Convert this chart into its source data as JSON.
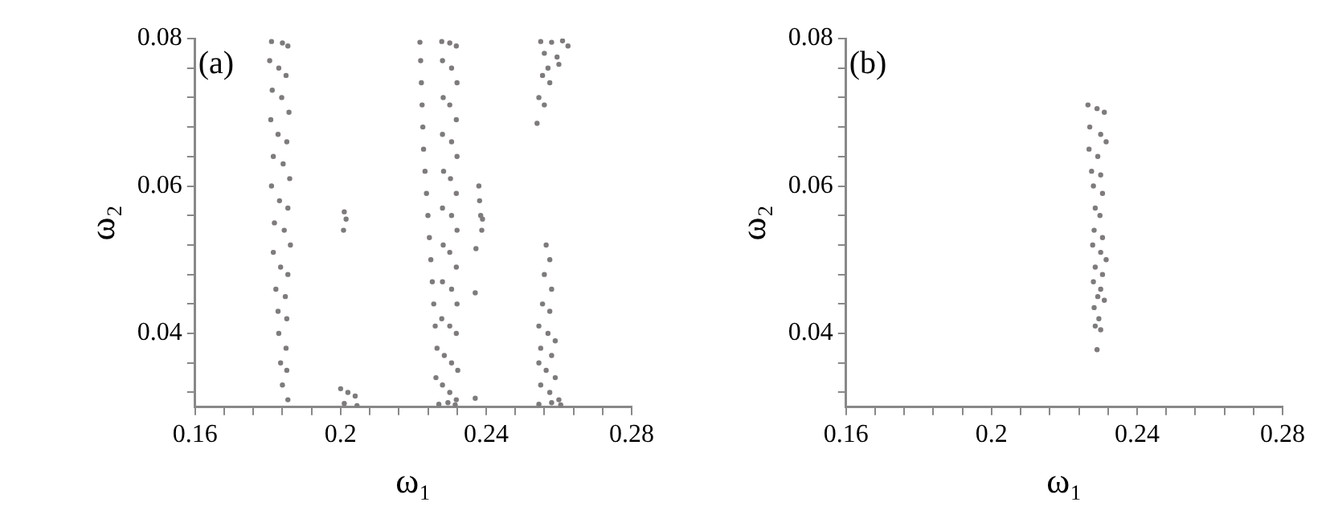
{
  "chart_data": [
    {
      "type": "scatter",
      "xlabel": "ω₁",
      "ylabel": "ω₂",
      "annotations": [
        "(a)"
      ],
      "marker": "circle",
      "grid": false,
      "xlim": [
        0.16,
        0.28
      ],
      "ylim": [
        0.03,
        0.08
      ],
      "xticks": [
        0.16,
        {
          "value": 0.168,
          "label": null
        },
        {
          "value": 0.176,
          "label": null
        },
        {
          "value": 0.184,
          "label": null
        },
        {
          "value": 0.192,
          "label": null
        },
        0.2,
        {
          "value": 0.208,
          "label": null
        },
        {
          "value": 0.216,
          "label": null
        },
        {
          "value": 0.224,
          "label": null
        },
        {
          "value": 0.232,
          "label": null
        },
        0.24,
        {
          "value": 0.248,
          "label": null
        },
        {
          "value": 0.256,
          "label": null
        },
        {
          "value": 0.264,
          "label": null
        },
        {
          "value": 0.272,
          "label": null
        },
        0.28
      ],
      "yticks": [
        {
          "value": 0.032,
          "label": null
        },
        {
          "value": 0.036,
          "label": null
        },
        0.04,
        {
          "value": 0.044,
          "label": null
        },
        {
          "value": 0.048,
          "label": null
        },
        {
          "value": 0.052,
          "label": null
        },
        {
          "value": 0.056,
          "label": null
        },
        0.06,
        {
          "value": 0.064,
          "label": null
        },
        {
          "value": 0.068,
          "label": null
        },
        {
          "value": 0.072,
          "label": null
        },
        {
          "value": 0.076,
          "label": null
        },
        0.08
      ],
      "series": [
        {
          "color": "#7f7b7b",
          "x": [
            0.181,
            0.184,
            0.1855,
            0.1805,
            0.183,
            0.185,
            0.1812,
            0.1838,
            0.1858,
            0.1808,
            0.1828,
            0.1852,
            0.1815,
            0.1842,
            0.186,
            0.181,
            0.1832,
            0.1855,
            0.1818,
            0.1845,
            0.1862,
            0.1815,
            0.1835,
            0.1855,
            0.1822,
            0.1848,
            0.1828,
            0.1852,
            0.183,
            0.185,
            0.1835,
            0.1852,
            0.184,
            0.1855,
            0.2278,
            0.23,
            0.2318,
            0.228,
            0.2305,
            0.232,
            0.2282,
            0.23,
            0.2318,
            0.228,
            0.2305,
            0.232,
            0.2283,
            0.2302,
            0.2318,
            0.228,
            0.2305,
            0.232,
            0.2282,
            0.23,
            0.2318,
            0.228,
            0.2305,
            0.232,
            0.2278,
            0.23,
            0.2318,
            0.2265,
            0.2285,
            0.2305,
            0.2322,
            0.2262,
            0.228,
            0.23,
            0.2318,
            0.227,
            0.2295,
            0.2315,
            0.2218,
            0.222,
            0.2222,
            0.2224,
            0.2226,
            0.2228,
            0.2232,
            0.2236,
            0.224,
            0.2244,
            0.2248,
            0.2252,
            0.2256,
            0.226,
            0.201,
            0.2015,
            0.2008,
            0.2,
            0.202,
            0.204,
            0.201,
            0.2045,
            0.238,
            0.2382,
            0.2385,
            0.239,
            0.2388,
            0.2372,
            0.237,
            0.237,
            0.255,
            0.258,
            0.261,
            0.2625,
            0.256,
            0.2595,
            0.257,
            0.26,
            0.2555,
            0.2575,
            0.2545,
            0.256,
            0.254,
            0.2565,
            0.2575,
            0.256,
            0.258,
            0.2555,
            0.2575,
            0.2545,
            0.257,
            0.259,
            0.255,
            0.258,
            0.2545,
            0.2565,
            0.259,
            0.255,
            0.2575,
            0.26,
            0.2545,
            0.258,
            0.2605
          ],
          "values": [
            0.0796,
            0.0794,
            0.079,
            0.077,
            0.076,
            0.075,
            0.073,
            0.072,
            0.07,
            0.069,
            0.067,
            0.066,
            0.064,
            0.063,
            0.061,
            0.06,
            0.058,
            0.057,
            0.055,
            0.054,
            0.052,
            0.051,
            0.049,
            0.048,
            0.046,
            0.045,
            0.043,
            0.042,
            0.04,
            0.038,
            0.036,
            0.035,
            0.033,
            0.031,
            0.0796,
            0.0794,
            0.079,
            0.077,
            0.076,
            0.074,
            0.072,
            0.071,
            0.069,
            0.067,
            0.066,
            0.064,
            0.062,
            0.061,
            0.059,
            0.057,
            0.056,
            0.054,
            0.052,
            0.051,
            0.049,
            0.047,
            0.046,
            0.044,
            0.042,
            0.041,
            0.04,
            0.038,
            0.037,
            0.036,
            0.035,
            0.034,
            0.033,
            0.032,
            0.031,
            0.0304,
            0.0306,
            0.0303,
            0.0795,
            0.077,
            0.074,
            0.071,
            0.068,
            0.065,
            0.062,
            0.059,
            0.056,
            0.053,
            0.05,
            0.047,
            0.044,
            0.041,
            0.0565,
            0.0555,
            0.054,
            0.0325,
            0.032,
            0.0315,
            0.0305,
            0.0302,
            0.06,
            0.058,
            0.056,
            0.0555,
            0.054,
            0.0515,
            0.0455,
            0.0312,
            0.0796,
            0.0795,
            0.0797,
            0.079,
            0.078,
            0.0775,
            0.076,
            0.0765,
            0.075,
            0.074,
            0.072,
            0.071,
            0.0685,
            0.052,
            0.05,
            0.048,
            0.046,
            0.044,
            0.043,
            0.041,
            0.04,
            0.039,
            0.038,
            0.037,
            0.036,
            0.035,
            0.034,
            0.033,
            0.032,
            0.031,
            0.0304,
            0.0306,
            0.0303
          ]
        }
      ]
    },
    {
      "type": "scatter",
      "xlabel": "ω₁",
      "ylabel": "ω₂",
      "annotations": [
        "(b)"
      ],
      "marker": "circle",
      "grid": false,
      "xlim": [
        0.16,
        0.28
      ],
      "ylim": [
        0.03,
        0.08
      ],
      "xticks": [
        0.16,
        {
          "value": 0.168,
          "label": null
        },
        {
          "value": 0.176,
          "label": null
        },
        {
          "value": 0.184,
          "label": null
        },
        {
          "value": 0.192,
          "label": null
        },
        0.2,
        {
          "value": 0.208,
          "label": null
        },
        {
          "value": 0.216,
          "label": null
        },
        {
          "value": 0.224,
          "label": null
        },
        {
          "value": 0.232,
          "label": null
        },
        0.24,
        {
          "value": 0.248,
          "label": null
        },
        {
          "value": 0.256,
          "label": null
        },
        {
          "value": 0.264,
          "label": null
        },
        {
          "value": 0.272,
          "label": null
        },
        0.28
      ],
      "yticks": [
        {
          "value": 0.032,
          "label": null
        },
        {
          "value": 0.036,
          "label": null
        },
        0.04,
        {
          "value": 0.044,
          "label": null
        },
        {
          "value": 0.048,
          "label": null
        },
        {
          "value": 0.052,
          "label": null
        },
        {
          "value": 0.056,
          "label": null
        },
        0.06,
        {
          "value": 0.064,
          "label": null
        },
        {
          "value": 0.068,
          "label": null
        },
        {
          "value": 0.072,
          "label": null
        },
        {
          "value": 0.076,
          "label": null
        },
        0.08
      ],
      "series": [
        {
          "color": "#7f7b7b",
          "x": [
            0.2265,
            0.229,
            0.231,
            0.227,
            0.23,
            0.2315,
            0.2268,
            0.2292,
            0.2275,
            0.23,
            0.228,
            0.2305,
            0.2285,
            0.2298,
            0.2282,
            0.2305,
            0.2278,
            0.23,
            0.2315,
            0.2285,
            0.2305,
            0.228,
            0.23,
            0.2292,
            0.231,
            0.2282,
            0.2295,
            0.2285,
            0.23,
            0.229
          ],
          "values": [
            0.071,
            0.0705,
            0.07,
            0.068,
            0.067,
            0.066,
            0.065,
            0.064,
            0.062,
            0.0615,
            0.06,
            0.059,
            0.057,
            0.056,
            0.054,
            0.053,
            0.052,
            0.051,
            0.05,
            0.049,
            0.048,
            0.047,
            0.046,
            0.045,
            0.0445,
            0.0435,
            0.042,
            0.041,
            0.0405,
            0.0378
          ]
        }
      ]
    }
  ]
}
